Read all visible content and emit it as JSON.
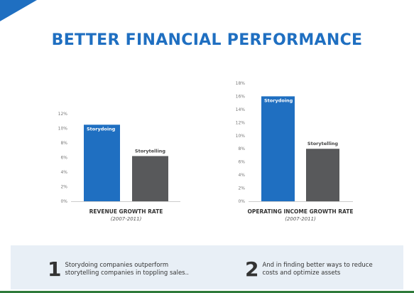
{
  "title": "BETTER FINANCIAL PERFORMANCE",
  "colors": {
    "accent": "#1f6fc1",
    "storytelling": "#58595b",
    "footer_bg": "#e8eff6"
  },
  "chart_data": [
    {
      "type": "bar",
      "categories": [
        "Storydoing",
        "Storytelling"
      ],
      "values": [
        10.5,
        6.2
      ],
      "colors": [
        "#1f6fc1",
        "#58595b"
      ],
      "ylim": [
        0,
        12
      ],
      "yticks": [
        "0%",
        "2%",
        "4%",
        "6%",
        "8%",
        "10%",
        "12%"
      ],
      "xlabel": "REVENUE GROWTH RATE",
      "subtitle": "(2007-2011)"
    },
    {
      "type": "bar",
      "categories": [
        "Storydoing",
        "Storytelling"
      ],
      "values": [
        16,
        8
      ],
      "colors": [
        "#1f6fc1",
        "#58595b"
      ],
      "ylim": [
        0,
        18
      ],
      "yticks": [
        "0%",
        "2%",
        "4%",
        "6%",
        "8%",
        "10%",
        "12%",
        "14%",
        "16%",
        "18%"
      ],
      "xlabel": "OPERATING INCOME GROWTH RATE",
      "subtitle": "(2007-2011)"
    }
  ],
  "footer": {
    "points": [
      {
        "number": "1",
        "line1": "Storydoing companies outperform",
        "line2": "storytelling companies in toppling sales.."
      },
      {
        "number": "2",
        "line1": "And in finding better ways to reduce",
        "line2": "costs and optimize assets"
      }
    ]
  }
}
